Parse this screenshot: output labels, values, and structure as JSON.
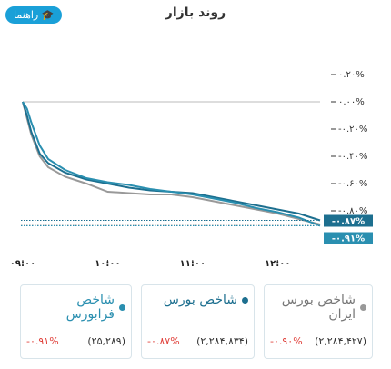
{
  "header": {
    "title": "روند بازار",
    "help_button": "راهنما"
  },
  "chart_data": {
    "type": "line",
    "x": [
      9,
      9.05,
      9.1,
      9.2,
      9.3,
      9.5,
      9.75,
      10,
      10.25,
      10.5,
      10.75,
      11,
      11.25,
      11.5,
      11.75,
      12,
      12.25,
      12.5
    ],
    "xlim": [
      9,
      12.5
    ],
    "xticks": [
      {
        "value": 9,
        "label": "۰۹:۰۰"
      },
      {
        "value": 10,
        "label": "۱۰:۰۰"
      },
      {
        "value": 11,
        "label": "۱۱:۰۰"
      },
      {
        "value": 12,
        "label": "۱۲:۰۰"
      }
    ],
    "ylim": [
      -1,
      0.3
    ],
    "yticks": [
      {
        "value": 0.2,
        "label": "۰.۲۰%"
      },
      {
        "value": 0,
        "label": "۰.۰۰%"
      },
      {
        "value": -0.2,
        "label": "-۰.۲۰%"
      },
      {
        "value": -0.4,
        "label": "-۰.۴۰%"
      },
      {
        "value": -0.6,
        "label": "-۰.۶۰%"
      },
      {
        "value": -0.8,
        "label": "-۰.۸۰%"
      }
    ],
    "series": [
      {
        "name": "شاخص فرابورس",
        "color": "#2a8fb0",
        "values": [
          0,
          -0.05,
          -0.15,
          -0.32,
          -0.42,
          -0.5,
          -0.56,
          -0.59,
          -0.61,
          -0.64,
          -0.66,
          -0.68,
          -0.71,
          -0.74,
          -0.78,
          -0.81,
          -0.85,
          -0.91
        ]
      },
      {
        "name": "شاخص بورس",
        "color": "#1d6f8f",
        "values": [
          0,
          -0.1,
          -0.22,
          -0.38,
          -0.45,
          -0.52,
          -0.57,
          -0.6,
          -0.63,
          -0.65,
          -0.66,
          -0.67,
          -0.7,
          -0.73,
          -0.76,
          -0.79,
          -0.82,
          -0.87
        ]
      },
      {
        "name": "شاخص بورس ایران",
        "color": "#999999",
        "values": [
          0,
          -0.12,
          -0.24,
          -0.4,
          -0.48,
          -0.55,
          -0.6,
          -0.66,
          -0.67,
          -0.68,
          -0.68,
          -0.7,
          -0.73,
          -0.76,
          -0.79,
          -0.82,
          -0.86,
          -0.9
        ]
      }
    ]
  },
  "cards": [
    {
      "index": {
        "value": 25289,
        "label": "(۲۵,۲۸۹)"
      },
      "change": {
        "value": -0.91,
        "label": "-۰.۹۱%"
      }
    },
    {
      "index": {
        "value": 2284834,
        "label": "(۲,۲۸۴,۸۳۴)"
      },
      "change": {
        "value": -0.87,
        "label": "-۰.۸۷%"
      }
    },
    {
      "index": {
        "value": 2284427,
        "label": "(۲,۲۸۴,۴۲۷)"
      },
      "change": {
        "value": -0.9,
        "label": "-۰.۹۰%"
      }
    }
  ]
}
